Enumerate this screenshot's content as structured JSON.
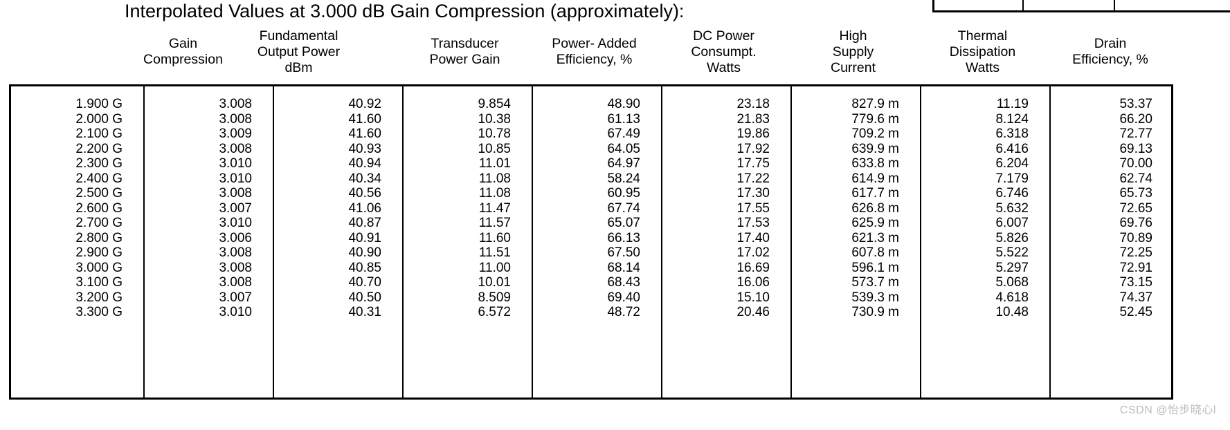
{
  "title": "Interpolated Values at 3.000 dB Gain Compression (approximately):",
  "watermark": "CSDN @怡步晓心l",
  "colors": {
    "text": "#000000",
    "border": "#000000",
    "watermark": "#bcbcbc",
    "background": "#ffffff"
  },
  "table": {
    "columns": [
      {
        "label": ""
      },
      {
        "label": "Gain\nCompression"
      },
      {
        "label": "Fundamental\nOutput Power\ndBm"
      },
      {
        "label": "Transducer\nPower Gain"
      },
      {
        "label": "Power- Added\nEfficiency, %"
      },
      {
        "label": "DC Power\nConsumpt.\nWatts"
      },
      {
        "label": "High\nSupply\nCurrent"
      },
      {
        "label": "Thermal\nDissipation\nWatts"
      },
      {
        "label": "Drain\nEfficiency, %"
      }
    ],
    "rows": [
      [
        "1.900 G",
        "3.008",
        "40.92",
        "9.854",
        "48.90",
        "23.18",
        "827.9 m",
        "11.19",
        "53.37"
      ],
      [
        "2.000 G",
        "3.008",
        "41.60",
        "10.38",
        "61.13",
        "21.83",
        "779.6 m",
        "8.124",
        "66.20"
      ],
      [
        "2.100 G",
        "3.009",
        "41.60",
        "10.78",
        "67.49",
        "19.86",
        "709.2 m",
        "6.318",
        "72.77"
      ],
      [
        "2.200 G",
        "3.008",
        "40.93",
        "10.85",
        "64.05",
        "17.92",
        "639.9 m",
        "6.416",
        "69.13"
      ],
      [
        "2.300 G",
        "3.010",
        "40.94",
        "11.01",
        "64.97",
        "17.75",
        "633.8 m",
        "6.204",
        "70.00"
      ],
      [
        "2.400 G",
        "3.010",
        "40.34",
        "11.08",
        "58.24",
        "17.22",
        "614.9 m",
        "7.179",
        "62.74"
      ],
      [
        "2.500 G",
        "3.008",
        "40.56",
        "11.08",
        "60.95",
        "17.30",
        "617.7 m",
        "6.746",
        "65.73"
      ],
      [
        "2.600 G",
        "3.007",
        "41.06",
        "11.47",
        "67.74",
        "17.55",
        "626.8 m",
        "5.632",
        "72.65"
      ],
      [
        "2.700 G",
        "3.010",
        "40.87",
        "11.57",
        "65.07",
        "17.53",
        "625.9 m",
        "6.007",
        "69.76"
      ],
      [
        "2.800 G",
        "3.006",
        "40.91",
        "11.60",
        "66.13",
        "17.40",
        "621.3 m",
        "5.826",
        "70.89"
      ],
      [
        "2.900 G",
        "3.008",
        "40.90",
        "11.51",
        "67.50",
        "17.02",
        "607.8 m",
        "5.522",
        "72.25"
      ],
      [
        "3.000 G",
        "3.008",
        "40.85",
        "11.00",
        "68.14",
        "16.69",
        "596.1 m",
        "5.297",
        "72.91"
      ],
      [
        "3.100 G",
        "3.008",
        "40.70",
        "10.01",
        "68.43",
        "16.06",
        "573.7 m",
        "5.068",
        "73.15"
      ],
      [
        "3.200 G",
        "3.007",
        "40.50",
        "8.509",
        "69.40",
        "15.10",
        "539.3 m",
        "4.618",
        "74.37"
      ],
      [
        "3.300 G",
        "3.010",
        "40.31",
        "6.572",
        "48.72",
        "20.46",
        "730.9 m",
        "10.48",
        "52.45"
      ]
    ]
  },
  "chart_data": {
    "type": "table",
    "title": "Interpolated Values at 3.000 dB Gain Compression (approximately):",
    "categories": [
      "1.900 G",
      "2.000 G",
      "2.100 G",
      "2.200 G",
      "2.300 G",
      "2.400 G",
      "2.500 G",
      "2.600 G",
      "2.700 G",
      "2.800 G",
      "2.900 G",
      "3.000 G",
      "3.100 G",
      "3.200 G",
      "3.300 G"
    ],
    "series": [
      {
        "name": "Gain Compression",
        "values": [
          3.008,
          3.008,
          3.009,
          3.008,
          3.01,
          3.01,
          3.008,
          3.007,
          3.01,
          3.006,
          3.008,
          3.008,
          3.008,
          3.007,
          3.01
        ]
      },
      {
        "name": "Fundamental Output Power dBm",
        "values": [
          40.92,
          41.6,
          41.6,
          40.93,
          40.94,
          40.34,
          40.56,
          41.06,
          40.87,
          40.91,
          40.9,
          40.85,
          40.7,
          40.5,
          40.31
        ]
      },
      {
        "name": "Transducer Power Gain",
        "values": [
          9.854,
          10.38,
          10.78,
          10.85,
          11.01,
          11.08,
          11.08,
          11.47,
          11.57,
          11.6,
          11.51,
          11.0,
          10.01,
          8.509,
          6.572
        ]
      },
      {
        "name": "Power- Added Efficiency, %",
        "values": [
          48.9,
          61.13,
          67.49,
          64.05,
          64.97,
          58.24,
          60.95,
          67.74,
          65.07,
          66.13,
          67.5,
          68.14,
          68.43,
          69.4,
          48.72
        ]
      },
      {
        "name": "DC Power Consumpt. Watts",
        "values": [
          23.18,
          21.83,
          19.86,
          17.92,
          17.75,
          17.22,
          17.3,
          17.55,
          17.53,
          17.4,
          17.02,
          16.69,
          16.06,
          15.1,
          20.46
        ]
      },
      {
        "name": "High Supply Current (A)",
        "values": [
          "827.9 m",
          "779.6 m",
          "709.2 m",
          "639.9 m",
          "633.8 m",
          "614.9 m",
          "617.7 m",
          "626.8 m",
          "625.9 m",
          "621.3 m",
          "607.8 m",
          "596.1 m",
          "573.7 m",
          "539.3 m",
          "730.9 m"
        ]
      },
      {
        "name": "Thermal Dissipation Watts",
        "values": [
          11.19,
          8.124,
          6.318,
          6.416,
          6.204,
          7.179,
          6.746,
          5.632,
          6.007,
          5.826,
          5.522,
          5.297,
          5.068,
          4.618,
          10.48
        ]
      },
      {
        "name": "Drain Efficiency, %",
        "values": [
          53.37,
          66.2,
          72.77,
          69.13,
          70.0,
          62.74,
          65.73,
          72.65,
          69.76,
          70.89,
          72.25,
          72.91,
          73.15,
          74.37,
          52.45
        ]
      }
    ]
  }
}
